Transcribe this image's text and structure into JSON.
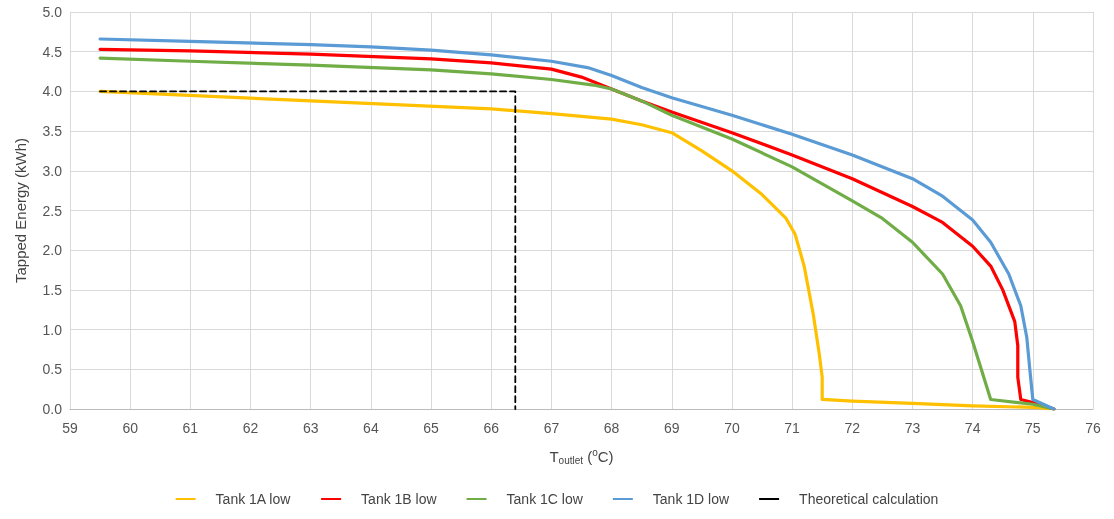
{
  "chart_data": {
    "type": "line",
    "xlabel": "T$_{outlet}$ ($^{o}$C)",
    "ylabel": "Tapped Energy (kWh)",
    "xlim": [
      59,
      76
    ],
    "xticks": [
      59,
      60,
      61,
      62,
      63,
      64,
      65,
      66,
      67,
      68,
      69,
      70,
      71,
      72,
      73,
      74,
      75,
      76
    ],
    "ylim": [
      0,
      5
    ],
    "yticks": [
      {
        "value": 0,
        "label": "0.0"
      },
      0.5,
      {
        "value": 1,
        "label": "1.0"
      },
      1.5,
      {
        "value": 2,
        "label": "2.0"
      },
      2.5,
      {
        "value": 3,
        "label": "3.0"
      },
      3.5,
      {
        "value": 4,
        "label": "4.0"
      },
      4.5,
      {
        "value": 5,
        "label": "5.0"
      }
    ],
    "grid": true,
    "legend": "bottom",
    "marker": "none",
    "series": [
      {
        "name": "Tank 1A low",
        "color": "#ffc000",
        "x": [
          59.5,
          63,
          66,
          67,
          68,
          68.5,
          69,
          69.5,
          70,
          70.5,
          70.9,
          71.05,
          71.2,
          71.35,
          71.45,
          71.5,
          71.5,
          72,
          73,
          74,
          75,
          75.35
        ],
        "values": [
          4.0,
          3.88,
          3.78,
          3.72,
          3.65,
          3.58,
          3.48,
          3.25,
          3.0,
          2.7,
          2.4,
          2.2,
          1.8,
          1.2,
          0.7,
          0.4,
          0.12,
          0.1,
          0.07,
          0.04,
          0.02,
          0.0
        ]
      },
      {
        "name": "Tank 1B low",
        "color": "#ff0000",
        "x": [
          59.5,
          61,
          63,
          65,
          66,
          67,
          67.5,
          68,
          68.5,
          69,
          70,
          71,
          72,
          73,
          73.5,
          74,
          74.3,
          74.5,
          74.7,
          74.75,
          74.75,
          74.8,
          75,
          75.35
        ],
        "values": [
          4.53,
          4.51,
          4.47,
          4.41,
          4.36,
          4.28,
          4.18,
          4.03,
          3.88,
          3.74,
          3.48,
          3.2,
          2.9,
          2.55,
          2.35,
          2.05,
          1.8,
          1.5,
          1.1,
          0.8,
          0.4,
          0.12,
          0.08,
          0.0
        ]
      },
      {
        "name": "Tank 1C low",
        "color": "#70ad47",
        "x": [
          59.5,
          61,
          63,
          65,
          66,
          67,
          67.7,
          68,
          68.5,
          69,
          70,
          71,
          72,
          72.5,
          73,
          73.5,
          73.8,
          74,
          74.3,
          75,
          75.35
        ],
        "values": [
          4.42,
          4.38,
          4.33,
          4.27,
          4.22,
          4.15,
          4.08,
          4.03,
          3.88,
          3.7,
          3.4,
          3.05,
          2.62,
          2.4,
          2.1,
          1.7,
          1.3,
          0.85,
          0.12,
          0.06,
          0.0
        ]
      },
      {
        "name": "Tank 1D low",
        "color": "#5b9bd5",
        "x": [
          59.5,
          61,
          63,
          64,
          65,
          66,
          67,
          67.6,
          68,
          68.5,
          69,
          70,
          71,
          72,
          73,
          73.5,
          74,
          74.3,
          74.6,
          74.8,
          74.9,
          74.95,
          75,
          75.35
        ],
        "values": [
          4.66,
          4.63,
          4.59,
          4.56,
          4.52,
          4.46,
          4.38,
          4.3,
          4.2,
          4.05,
          3.92,
          3.7,
          3.46,
          3.2,
          2.9,
          2.68,
          2.38,
          2.1,
          1.7,
          1.3,
          0.9,
          0.5,
          0.12,
          0.0
        ]
      },
      {
        "name": "Theoretical calculation",
        "color": "#000000",
        "line_style": "dashed",
        "x": [
          59.5,
          66.4,
          66.4
        ],
        "values": [
          4.0,
          4.0,
          0.0
        ]
      }
    ]
  }
}
